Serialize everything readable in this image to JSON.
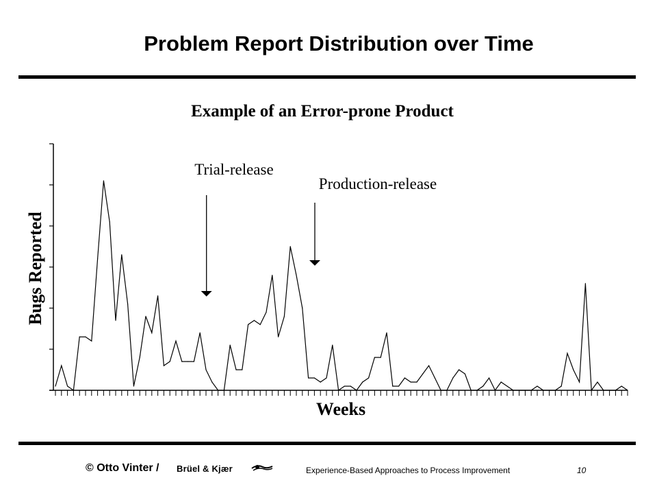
{
  "slide": {
    "title": "Problem Report Distribution over Time"
  },
  "chart_data": {
    "type": "line",
    "title": "Example of an Error-prone Product",
    "xlabel": "Weeks",
    "ylabel": "Bugs Reported",
    "ylim": [
      0,
      6
    ],
    "y_major_ticks": 6,
    "grid": false,
    "legend": "none",
    "x": [
      1,
      2,
      3,
      4,
      5,
      6,
      7,
      8,
      9,
      10,
      11,
      12,
      13,
      14,
      15,
      16,
      17,
      18,
      19,
      20,
      21,
      22,
      23,
      24,
      25,
      26,
      27,
      28,
      29,
      30,
      31,
      32,
      33,
      34,
      35,
      36,
      37,
      38,
      39,
      40,
      41,
      42,
      43,
      44,
      45,
      46,
      47,
      48,
      49,
      50,
      51,
      52,
      53,
      54,
      55,
      56,
      57,
      58,
      59,
      60,
      61,
      62,
      63,
      64,
      65,
      66,
      67,
      68,
      69,
      70,
      71,
      72,
      73,
      74,
      75,
      76,
      77,
      78,
      79,
      80,
      81,
      82,
      83,
      84,
      85,
      86,
      87,
      88,
      89,
      90,
      91,
      92,
      93,
      94,
      95,
      96
    ],
    "series": [
      {
        "values": [
          0.1,
          0.6,
          0.1,
          0.0,
          1.3,
          1.3,
          1.2,
          3.2,
          5.1,
          4.1,
          1.7,
          3.3,
          2.1,
          0.1,
          0.8,
          1.8,
          1.4,
          2.3,
          0.6,
          0.7,
          1.2,
          0.7,
          0.7,
          0.7,
          1.4,
          0.5,
          0.2,
          0.0,
          0.0,
          1.1,
          0.5,
          0.5,
          1.6,
          1.7,
          1.6,
          1.9,
          2.8,
          1.3,
          1.8,
          3.5,
          2.8,
          2.0,
          0.3,
          0.3,
          0.2,
          0.3,
          1.1,
          0.0,
          0.1,
          0.1,
          0.0,
          0.2,
          0.3,
          0.8,
          0.8,
          1.4,
          0.1,
          0.1,
          0.3,
          0.2,
          0.2,
          0.4,
          0.6,
          0.3,
          0.0,
          0.0,
          0.3,
          0.5,
          0.4,
          0.0,
          0.0,
          0.1,
          0.3,
          0.0,
          0.2,
          0.1,
          0.0,
          0.0,
          0.0,
          0.0,
          0.1,
          0.0,
          0.0,
          0.0,
          0.1,
          0.9,
          0.5,
          0.2,
          2.6,
          0.0,
          0.2,
          0.0,
          0.0,
          0.0,
          0.1,
          0.0
        ]
      }
    ],
    "annotations": [
      {
        "label": "Trial-release",
        "x": 26
      },
      {
        "label": "Production-release",
        "x": 44
      }
    ]
  },
  "footer": {
    "copyright": "© Otto Vinter /",
    "logo_text": "Brüel & Kjær",
    "course": "Experience-Based Approaches to Process Improvement",
    "page": "10"
  }
}
